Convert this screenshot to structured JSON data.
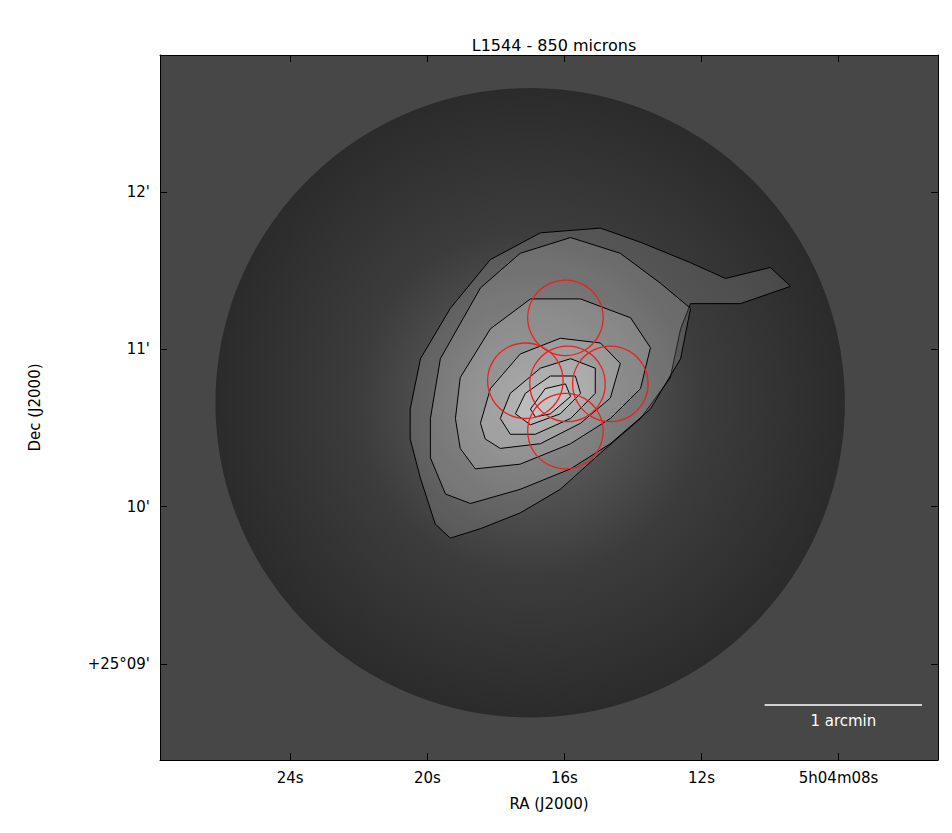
{
  "chart_data": {
    "type": "contour",
    "title": "L1544 - 850 microns",
    "x_label": "RA (J2000)",
    "y_label": "Dec (J2000)",
    "xlim": [
      27.8,
      5.1
    ],
    "xticks": [
      {
        "value": 24,
        "label": "24s"
      },
      {
        "value": 20,
        "label": "20s"
      },
      {
        "value": 16,
        "label": "16s"
      },
      {
        "value": 12,
        "label": "12s"
      },
      {
        "value": 8,
        "label": "5h04m08s"
      }
    ],
    "ylim": [
      8.39,
      12.87
    ],
    "yticks": [
      {
        "value": 9,
        "label": "+25°09'"
      },
      {
        "value": 10,
        "label": "10'"
      },
      {
        "value": 11,
        "label": "11'"
      },
      {
        "value": 12,
        "label": "12'"
      }
    ],
    "grid": false,
    "field": {
      "center": [
        17.0,
        10.66
      ],
      "radius_arcmin": 2.0
    },
    "contours": {
      "color": "#000000",
      "lines": [
        [
          [
            20.5,
            10.62
          ],
          [
            20.2,
            10.94
          ],
          [
            19.33,
            11.26
          ],
          [
            18.16,
            11.57
          ],
          [
            16.7,
            11.74
          ],
          [
            14.95,
            11.77
          ],
          [
            13.78,
            11.68
          ],
          [
            12.32,
            11.55
          ],
          [
            11.3,
            11.45
          ],
          [
            9.99,
            11.52
          ],
          [
            9.4,
            11.4
          ],
          [
            10.86,
            11.29
          ],
          [
            12.32,
            11.29
          ],
          [
            12.61,
            11.13
          ],
          [
            12.91,
            10.82
          ],
          [
            13.78,
            10.56
          ],
          [
            14.95,
            10.34
          ],
          [
            16.12,
            10.11
          ],
          [
            17.29,
            9.96
          ],
          [
            18.45,
            9.86
          ],
          [
            19.33,
            9.8
          ],
          [
            19.77,
            9.89
          ],
          [
            20.2,
            10.18
          ],
          [
            20.5,
            10.43
          ]
        ],
        [
          [
            19.91,
            10.56
          ],
          [
            19.62,
            10.94
          ],
          [
            18.45,
            11.39
          ],
          [
            17.29,
            11.61
          ],
          [
            15.82,
            11.71
          ],
          [
            14.37,
            11.61
          ],
          [
            13.2,
            11.42
          ],
          [
            12.32,
            11.26
          ],
          [
            12.61,
            10.94
          ],
          [
            13.49,
            10.62
          ],
          [
            14.66,
            10.4
          ],
          [
            15.82,
            10.24
          ],
          [
            17.29,
            10.11
          ],
          [
            18.74,
            10.02
          ],
          [
            19.47,
            10.08
          ],
          [
            19.91,
            10.31
          ]
        ],
        [
          [
            19.18,
            10.56
          ],
          [
            19.04,
            10.82
          ],
          [
            18.16,
            11.13
          ],
          [
            16.99,
            11.32
          ],
          [
            15.53,
            11.32
          ],
          [
            14.07,
            11.2
          ],
          [
            13.49,
            11.01
          ],
          [
            13.78,
            10.75
          ],
          [
            14.66,
            10.56
          ],
          [
            15.82,
            10.4
          ],
          [
            17.29,
            10.27
          ],
          [
            18.6,
            10.24
          ],
          [
            19.04,
            10.37
          ]
        ],
        [
          [
            18.45,
            10.53
          ],
          [
            18.16,
            10.75
          ],
          [
            17.29,
            10.97
          ],
          [
            16.12,
            11.07
          ],
          [
            14.95,
            11.04
          ],
          [
            14.37,
            10.91
          ],
          [
            14.66,
            10.69
          ],
          [
            15.53,
            10.53
          ],
          [
            16.7,
            10.4
          ],
          [
            17.87,
            10.37
          ],
          [
            18.31,
            10.43
          ]
        ],
        [
          [
            17.87,
            10.56
          ],
          [
            17.58,
            10.72
          ],
          [
            16.7,
            10.88
          ],
          [
            15.82,
            10.94
          ],
          [
            15.1,
            10.88
          ],
          [
            15.1,
            10.72
          ],
          [
            15.82,
            10.56
          ],
          [
            16.85,
            10.46
          ],
          [
            17.58,
            10.46
          ]
        ],
        [
          [
            17.43,
            10.59
          ],
          [
            17.14,
            10.72
          ],
          [
            16.41,
            10.83
          ],
          [
            15.68,
            10.83
          ],
          [
            15.53,
            10.72
          ],
          [
            16.12,
            10.59
          ],
          [
            16.99,
            10.52
          ]
        ],
        [
          [
            16.99,
            10.62
          ],
          [
            16.56,
            10.75
          ],
          [
            15.97,
            10.78
          ],
          [
            15.82,
            10.7
          ],
          [
            16.41,
            10.59
          ],
          [
            16.85,
            10.57
          ]
        ]
      ]
    },
    "circles": {
      "color": "#e8231f",
      "radius_arcmin": 0.24,
      "centers": [
        [
          15.97,
          11.2
        ],
        [
          17.14,
          10.8
        ],
        [
          15.91,
          10.78
        ],
        [
          14.66,
          10.78
        ],
        [
          15.97,
          10.48
        ]
      ]
    },
    "scale_bar": {
      "length_arcmin": 1,
      "label": "1 arcmin"
    }
  }
}
